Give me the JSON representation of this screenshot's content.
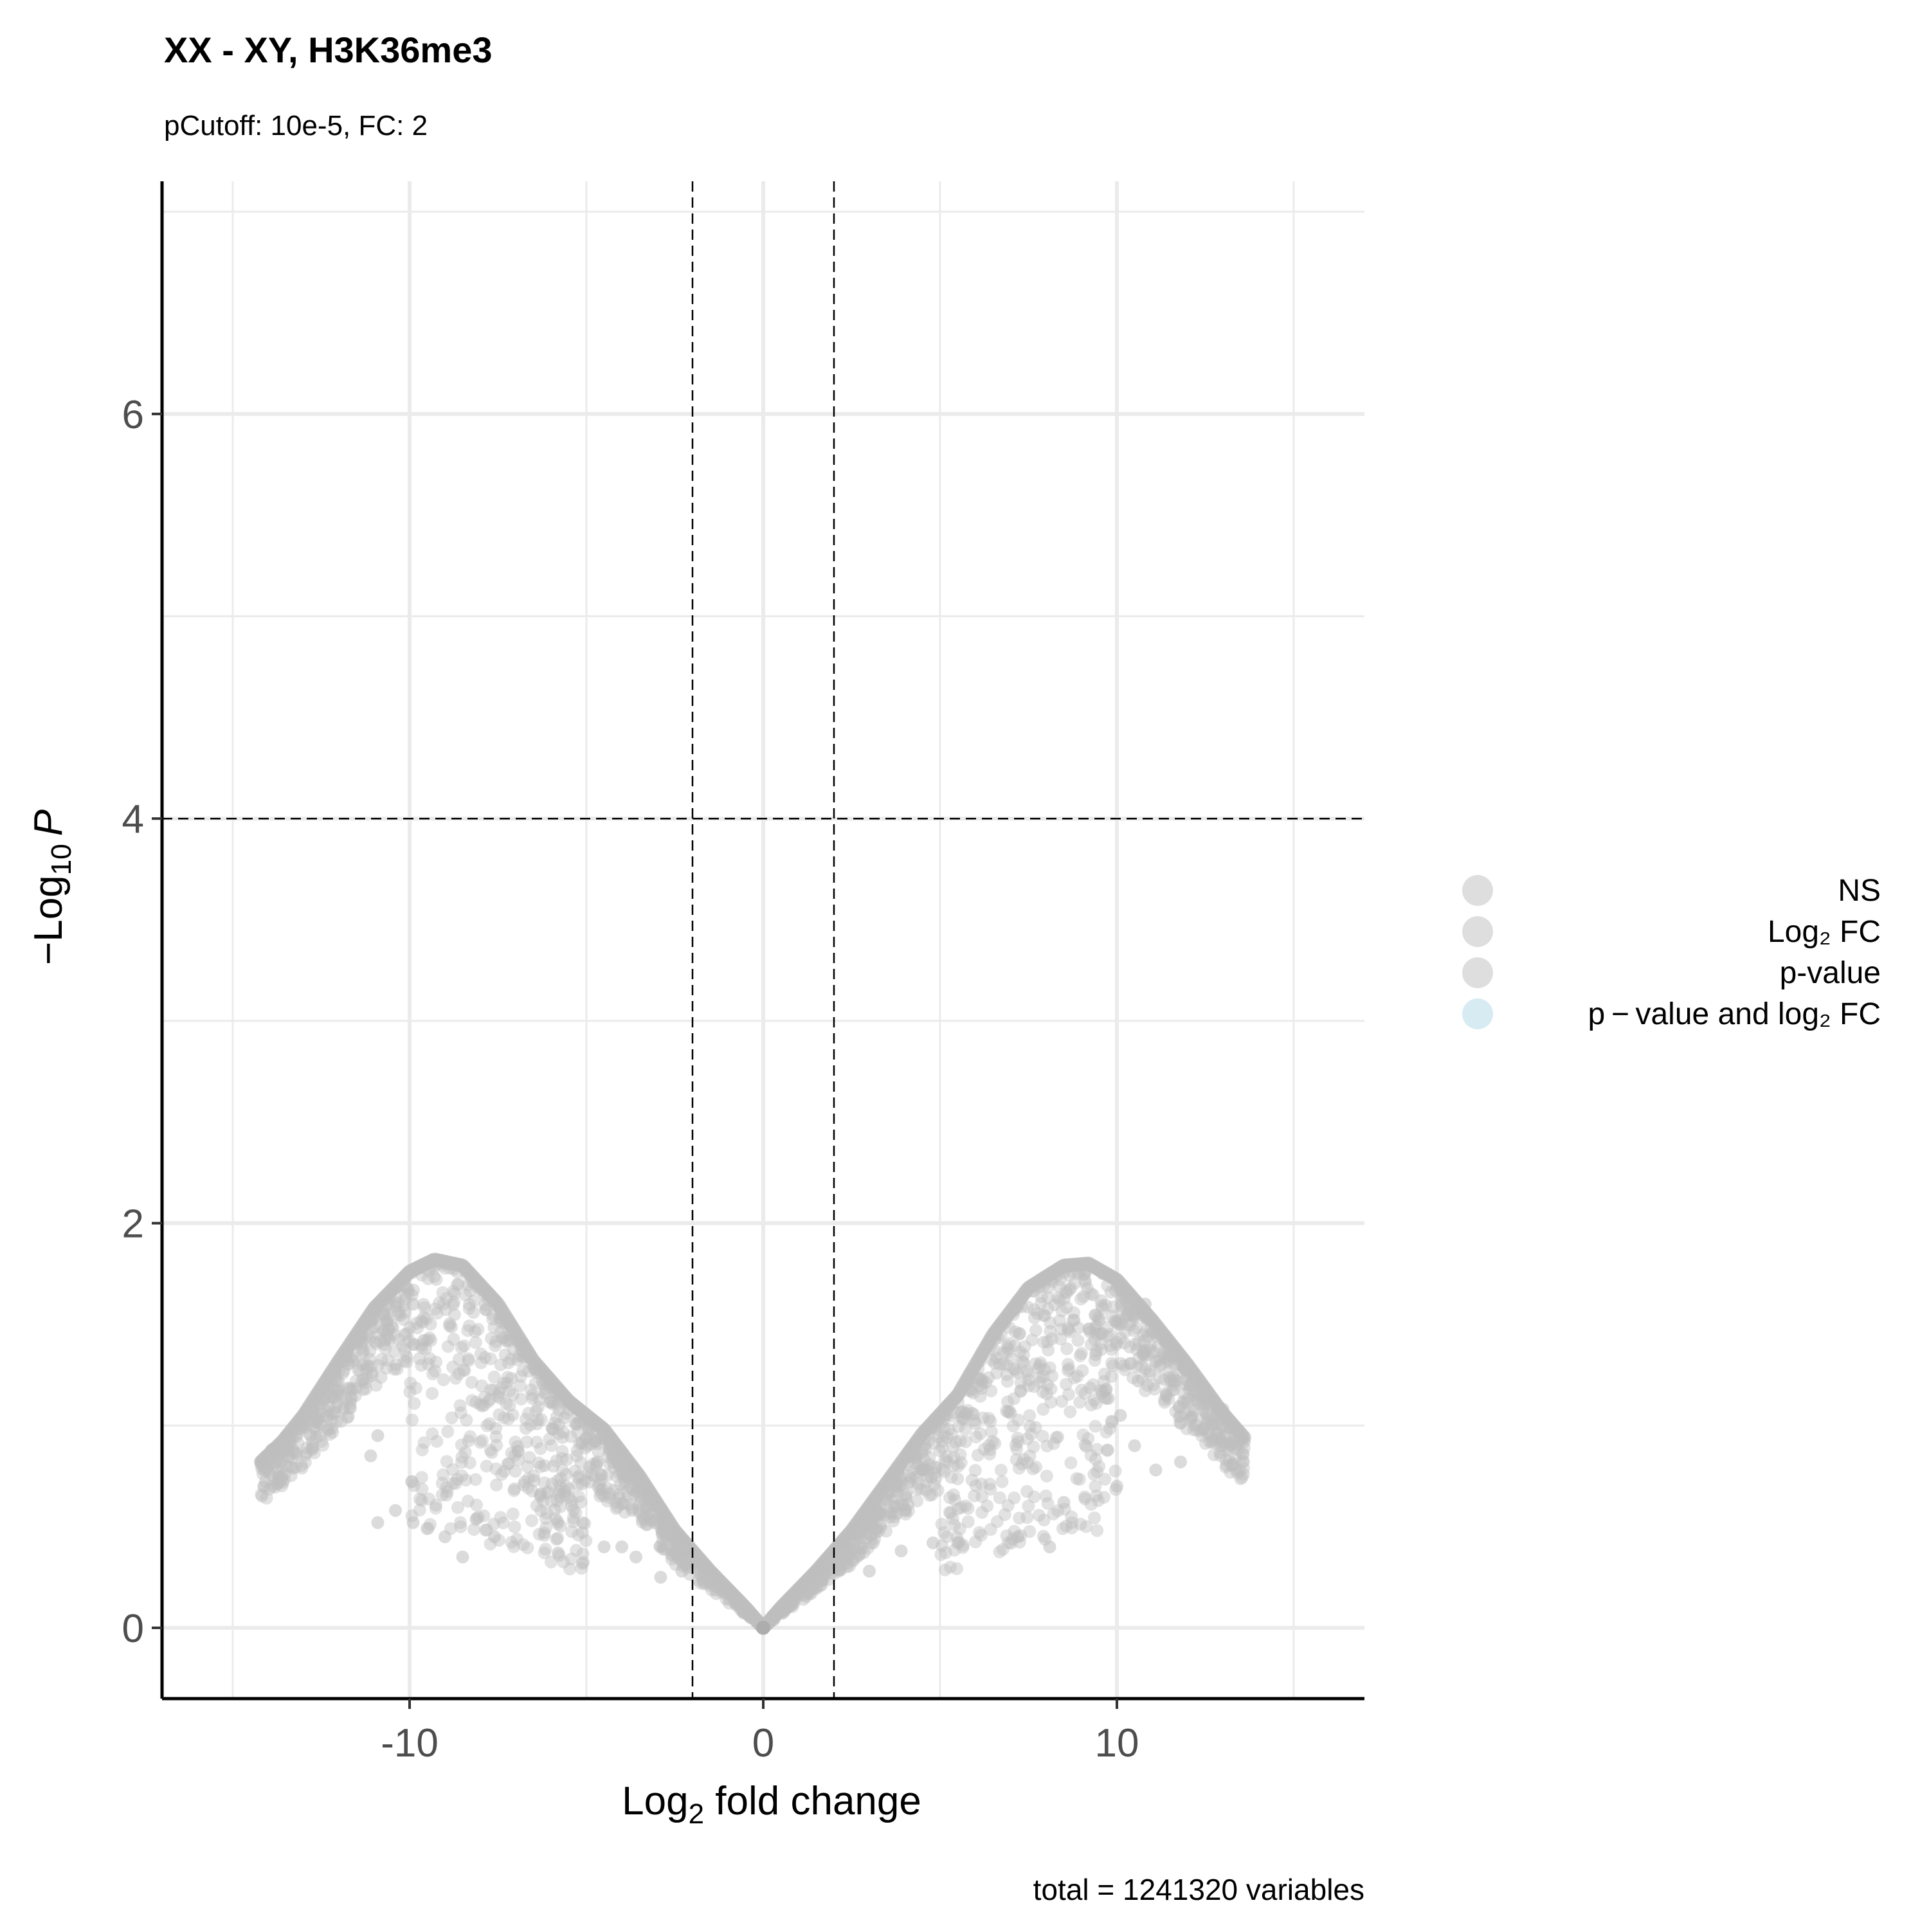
{
  "chart_data": {
    "type": "scatter",
    "title": "XX - XY, H3K36me3",
    "subtitle": "pCutoff: 10e-5, FC: 2",
    "caption": "total = 1241320 variables",
    "xlabel": {
      "base": "Log",
      "sub": "2",
      "rest": " fold change"
    },
    "ylabel": {
      "prefix": "−Log",
      "sub": "10",
      "italic": "P"
    },
    "xlim": [
      -17,
      17
    ],
    "ylim": [
      -0.35,
      7.15
    ],
    "x_ticks": [
      -10,
      0,
      10
    ],
    "x_tick_labels": [
      "-10",
      "0",
      "10"
    ],
    "x_minor_gridlines": [
      -15,
      -5,
      5,
      15
    ],
    "y_ticks": [
      0,
      2,
      4,
      6
    ],
    "y_tick_labels": [
      "0",
      "2",
      "4",
      "6"
    ],
    "y_minor_gridlines": [
      1,
      3,
      5,
      7
    ],
    "grid": true,
    "cutoff_lines": {
      "vertical": [
        -2,
        2
      ],
      "horizontal": 4
    },
    "legend": {
      "placement": "right",
      "items": [
        {
          "label": "NS",
          "color": "#bebebe"
        },
        {
          "label": "Log₂ FC",
          "color": "#bebebe"
        },
        {
          "label": "p-value",
          "color": "#bebebe"
        },
        {
          "label": "p − value and log₂ FC",
          "color": "#add8e6"
        }
      ]
    },
    "point_color": "#bebebe",
    "series": [
      {
        "values_envelope": [
          [
            -14.2,
            0.82
          ],
          [
            -13.6,
            0.92
          ],
          [
            -13.0,
            1.05
          ],
          [
            -12.0,
            1.32
          ],
          [
            -11.0,
            1.58
          ],
          [
            -10.0,
            1.76
          ],
          [
            -9.3,
            1.82
          ],
          [
            -8.5,
            1.79
          ],
          [
            -7.5,
            1.6
          ],
          [
            -6.5,
            1.32
          ],
          [
            -5.5,
            1.12
          ],
          [
            -4.5,
            0.98
          ],
          [
            -3.5,
            0.75
          ],
          [
            -2.5,
            0.48
          ],
          [
            -1.5,
            0.28
          ],
          [
            -0.5,
            0.1
          ],
          [
            0.0,
            0.0
          ],
          [
            0.5,
            0.1
          ],
          [
            1.5,
            0.28
          ],
          [
            2.5,
            0.48
          ],
          [
            3.5,
            0.72
          ],
          [
            4.5,
            0.96
          ],
          [
            5.5,
            1.15
          ],
          [
            6.5,
            1.45
          ],
          [
            7.5,
            1.68
          ],
          [
            8.5,
            1.79
          ],
          [
            9.2,
            1.8
          ],
          [
            10.0,
            1.72
          ],
          [
            11.0,
            1.52
          ],
          [
            12.0,
            1.3
          ],
          [
            13.0,
            1.06
          ],
          [
            13.6,
            0.94
          ]
        ],
        "outliers": [
          [
            -14.2,
            0.82
          ],
          [
            -13.9,
            0.88
          ],
          [
            -11.6,
            1.32
          ],
          [
            -11.1,
            0.85
          ],
          [
            -10.9,
            0.52
          ],
          [
            -10.4,
            0.58
          ],
          [
            -10.9,
            0.95
          ],
          [
            -9.9,
            0.52
          ],
          [
            -9.6,
            1.42
          ],
          [
            -9.9,
            1.6
          ],
          [
            -9.0,
            0.45
          ],
          [
            -8.5,
            0.35
          ],
          [
            -7.6,
            0.45
          ],
          [
            -5.8,
            0.37
          ],
          [
            -4.5,
            0.4
          ],
          [
            -4.0,
            0.4
          ],
          [
            -3.6,
            0.35
          ],
          [
            -2.9,
            0.25
          ],
          [
            -2.3,
            0.28
          ],
          [
            3.0,
            0.28
          ],
          [
            3.9,
            0.38
          ],
          [
            4.8,
            0.42
          ],
          [
            5.5,
            0.42
          ],
          [
            7.2,
            0.45
          ],
          [
            8.1,
            0.4
          ],
          [
            8.5,
            0.62
          ],
          [
            9.4,
            1.35
          ],
          [
            9.5,
            1.52
          ],
          [
            9.7,
            1.18
          ],
          [
            10.1,
            1.05
          ],
          [
            10.0,
            0.7
          ],
          [
            10.5,
            0.9
          ],
          [
            11.1,
            0.78
          ],
          [
            11.8,
            0.82
          ],
          [
            11.4,
            1.42
          ],
          [
            10.8,
            1.6
          ],
          [
            10.6,
            1.22
          ],
          [
            13.0,
            1.08
          ],
          [
            13.4,
            0.98
          ],
          [
            13.6,
            0.92
          ]
        ]
      }
    ]
  }
}
